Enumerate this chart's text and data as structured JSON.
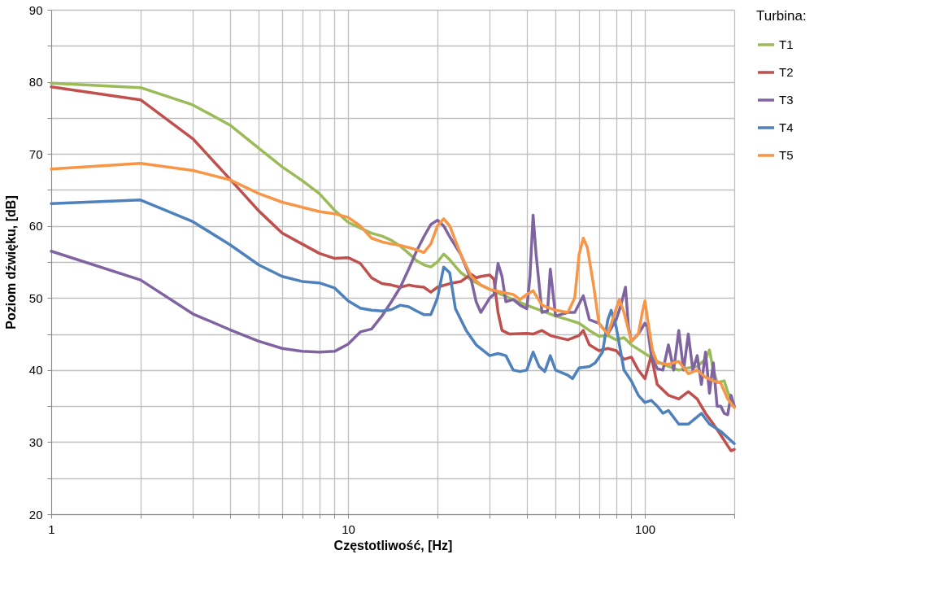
{
  "chart_data": {
    "type": "line",
    "xlabel": "Częstotliwość, [Hz]",
    "ylabel": "Poziom dźwięku, [dB]",
    "legend_title": "Turbina:",
    "legend": "right",
    "log": "x",
    "grid": true,
    "marker": "none",
    "line_style": "solid",
    "xlim": [
      1,
      200
    ],
    "ylim": [
      20,
      90
    ],
    "xticks": [
      1,
      {
        "value": 2,
        "label": null
      },
      {
        "value": 3,
        "label": null
      },
      {
        "value": 4,
        "label": null
      },
      {
        "value": 5,
        "label": null
      },
      {
        "value": 6,
        "label": null
      },
      {
        "value": 7,
        "label": null
      },
      {
        "value": 8,
        "label": null
      },
      {
        "value": 9,
        "label": null
      },
      10,
      {
        "value": 20,
        "label": null
      },
      {
        "value": 30,
        "label": null
      },
      {
        "value": 40,
        "label": null
      },
      {
        "value": 50,
        "label": null
      },
      {
        "value": 60,
        "label": null
      },
      {
        "value": 70,
        "label": null
      },
      {
        "value": 80,
        "label": null
      },
      {
        "value": 90,
        "label": null
      },
      100,
      {
        "value": 200,
        "label": null
      }
    ],
    "yticks": [
      20,
      {
        "value": 25,
        "label": null
      },
      30,
      {
        "value": 35,
        "label": null
      },
      40,
      {
        "value": 45,
        "label": null
      },
      50,
      {
        "value": 55,
        "label": null
      },
      60,
      {
        "value": 65,
        "label": null
      },
      70,
      {
        "value": 75,
        "label": null
      },
      80,
      {
        "value": 85,
        "label": null
      },
      90
    ],
    "series": [
      {
        "name": "T1",
        "color": "#9bbb59",
        "x": [
          1,
          2,
          3,
          4,
          5,
          6,
          7,
          8,
          9,
          10,
          11,
          12,
          13,
          14,
          15,
          16,
          17,
          18,
          19,
          20,
          21,
          22,
          24,
          26,
          28,
          30,
          35,
          40,
          45,
          50,
          55,
          60,
          65,
          70,
          75,
          80,
          85,
          90,
          100,
          110,
          120,
          130,
          140,
          150,
          160,
          165,
          170,
          175,
          185,
          190,
          200
        ],
        "values": [
          79.8,
          79.2,
          76.8,
          74,
          70.8,
          68.2,
          66.3,
          64.5,
          62.2,
          60.5,
          59.7,
          59,
          58.6,
          58,
          57.2,
          56.2,
          55.2,
          54.6,
          54.3,
          55,
          56.1,
          55.3,
          53.5,
          52.5,
          51.8,
          51.2,
          50,
          49,
          48.2,
          47.5,
          47,
          46.5,
          45.5,
          44.7,
          44.8,
          44.2,
          44.5,
          43.5,
          42.3,
          41.2,
          40.5,
          40,
          40.3,
          40.5,
          41.5,
          42.8,
          40,
          38.3,
          38.5,
          37,
          35
        ]
      },
      {
        "name": "T2",
        "color": "#c0504d",
        "x": [
          1,
          2,
          3,
          4,
          5,
          6,
          7,
          8,
          9,
          10,
          11,
          12,
          13,
          14,
          15,
          16,
          17,
          18,
          19,
          20,
          22,
          24,
          26,
          27,
          28,
          30,
          31,
          32,
          33,
          35,
          40,
          42,
          45,
          48,
          50,
          55,
          60,
          62,
          65,
          70,
          75,
          80,
          85,
          90,
          95,
          100,
          105,
          110,
          120,
          130,
          140,
          150,
          160,
          170,
          180,
          190,
          195,
          200
        ],
        "values": [
          79.3,
          77.5,
          72.1,
          66.5,
          62.1,
          59,
          57.5,
          56.2,
          55.5,
          55.6,
          54.8,
          52.8,
          52,
          51.8,
          51.5,
          51.8,
          51.6,
          51.5,
          50.8,
          51.5,
          52,
          52.3,
          53.3,
          52.8,
          53,
          53.2,
          52.6,
          48,
          45.5,
          45,
          45.1,
          45,
          45.5,
          44.8,
          44.6,
          44.2,
          44.8,
          45.5,
          43.5,
          42.7,
          43,
          42.7,
          41.5,
          41.8,
          40,
          38.8,
          42,
          38,
          36.5,
          36,
          37,
          36,
          34,
          32.5,
          31,
          29.5,
          28.8,
          29
        ]
      },
      {
        "name": "T3",
        "color": "#8064a2",
        "x": [
          1,
          2,
          3,
          4,
          5,
          6,
          7,
          8,
          9,
          10,
          11,
          12,
          13,
          14,
          15,
          16,
          17,
          18,
          19,
          20,
          21,
          22,
          24,
          26,
          27,
          28,
          29,
          30,
          31,
          32,
          33,
          34,
          36,
          38,
          40,
          41,
          42,
          43,
          45,
          47,
          48,
          50,
          55,
          58,
          62,
          65,
          70,
          75,
          80,
          83,
          86,
          88,
          90,
          95,
          100,
          102,
          105,
          110,
          115,
          120,
          125,
          130,
          135,
          140,
          145,
          150,
          155,
          160,
          165,
          170,
          175,
          180,
          185,
          190,
          195,
          200
        ],
        "values": [
          56.5,
          52.5,
          47.8,
          45.6,
          44,
          43,
          42.6,
          42.5,
          42.6,
          43.6,
          45.3,
          45.7,
          47.5,
          49.5,
          51.5,
          54,
          56.5,
          58.5,
          60.2,
          60.8,
          60,
          58.5,
          56,
          52.5,
          49.5,
          48,
          49,
          50,
          50.5,
          54.8,
          53,
          49.5,
          49.8,
          49,
          48.5,
          53,
          61.5,
          56,
          48,
          48.2,
          54,
          47.5,
          48,
          48,
          50.3,
          47,
          46.5,
          45,
          47,
          49,
          51.5,
          46,
          44,
          45,
          46.5,
          46,
          42,
          40.2,
          40,
          43.5,
          40,
          45.5,
          40,
          45,
          40,
          42,
          38,
          42.5,
          36.8,
          41,
          35,
          35,
          34,
          33.8,
          36.5,
          35
        ]
      },
      {
        "name": "T4",
        "color": "#4f81bd",
        "x": [
          1,
          2,
          3,
          4,
          5,
          6,
          7,
          8,
          9,
          10,
          11,
          12,
          13,
          14,
          15,
          16,
          17,
          18,
          19,
          20,
          21,
          22,
          23,
          25,
          27,
          30,
          32,
          34,
          36,
          38,
          40,
          42,
          44,
          46,
          48,
          50,
          55,
          57,
          60,
          65,
          68,
          72,
          75,
          77,
          80,
          85,
          90,
          95,
          100,
          105,
          110,
          115,
          120,
          130,
          140,
          150,
          155,
          165,
          180,
          200
        ],
        "values": [
          63.1,
          63.6,
          60.6,
          57.4,
          54.6,
          53,
          52.3,
          52.1,
          51.4,
          49.6,
          48.6,
          48.3,
          48.2,
          48.4,
          49,
          48.8,
          48.2,
          47.7,
          47.7,
          50,
          54.3,
          53.5,
          48.5,
          45.5,
          43.5,
          42,
          42.3,
          42,
          40,
          39.8,
          40,
          42.5,
          40.5,
          39.8,
          42,
          40,
          39.3,
          38.8,
          40.3,
          40.5,
          41,
          42.5,
          47,
          48.3,
          46,
          40,
          38.5,
          36.5,
          35.5,
          35.8,
          35,
          34,
          34.4,
          32.5,
          32.5,
          33.5,
          34,
          32.5,
          31.5,
          29.8
        ]
      },
      {
        "name": "T5",
        "color": "#f79646",
        "x": [
          1,
          2,
          3,
          4,
          5,
          6,
          7,
          8,
          9,
          10,
          11,
          12,
          13,
          14,
          15,
          16,
          17,
          18,
          19,
          20,
          21,
          22,
          24,
          26,
          28,
          30,
          33,
          36,
          38,
          40,
          42,
          45,
          50,
          55,
          58,
          60,
          62,
          64,
          67,
          70,
          75,
          80,
          82,
          85,
          90,
          95,
          98,
          100,
          103,
          106,
          110,
          120,
          130,
          140,
          150,
          160,
          170,
          180,
          190,
          200
        ],
        "values": [
          67.9,
          68.7,
          67.7,
          66.4,
          64.5,
          63.3,
          62.6,
          62,
          61.7,
          61.2,
          60,
          58.3,
          57.8,
          57.5,
          57.3,
          57,
          56.7,
          56.3,
          57.5,
          60,
          61,
          60,
          56,
          53,
          51.8,
          51.2,
          50.8,
          50.5,
          49.8,
          50.5,
          51,
          49,
          48.3,
          48,
          50,
          56,
          58.3,
          57,
          52,
          46.5,
          45,
          48.5,
          49.8,
          48,
          44,
          45,
          48,
          49.6,
          46,
          42.8,
          41,
          40.8,
          41.2,
          39.5,
          40,
          39,
          38.5,
          38.2,
          36,
          34.8
        ]
      }
    ]
  }
}
